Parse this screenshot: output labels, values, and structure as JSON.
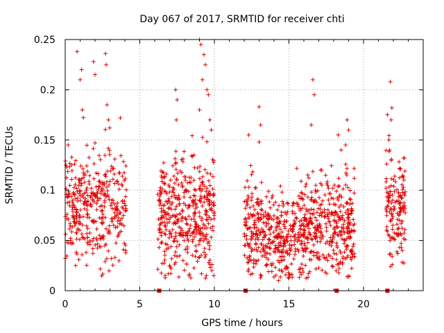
{
  "chart_data": {
    "type": "scatter",
    "title": "Day 067 of 2017, SRMTID for receiver chti",
    "xlabel": "GPS time / hours",
    "ylabel": "SRMTID / TECUs",
    "xlim": [
      0,
      24
    ],
    "ylim": [
      0,
      0.25
    ],
    "xticks": [
      0,
      5,
      10,
      15,
      20
    ],
    "yticks": [
      0,
      0.05,
      0.1,
      0.15,
      0.2,
      0.25
    ],
    "ytick_labels": [
      "0",
      "0.05",
      "0.1",
      "0.15",
      "0.2",
      "0.25"
    ],
    "grid": true,
    "series_color": "#e00000",
    "baseline_markers_hours": [
      6.3,
      12.1,
      18.2,
      21.6
    ],
    "clusters": [
      {
        "start": 0.0,
        "end": 4.1,
        "center": 0.085,
        "spread": 0.028,
        "n": 380,
        "outliers": [
          [
            0.2,
            0.145
          ],
          [
            0.8,
            0.238
          ],
          [
            1.1,
            0.22
          ],
          [
            1.15,
            0.18
          ],
          [
            1.9,
            0.228
          ],
          [
            2.0,
            0.215
          ],
          [
            2.7,
            0.236
          ],
          [
            2.75,
            0.225
          ],
          [
            2.8,
            0.185
          ],
          [
            2.9,
            0.17
          ],
          [
            1.0,
            0.21
          ],
          [
            3.7,
            0.172
          ],
          [
            0.7,
            0.025
          ],
          [
            3.1,
            0.032
          ]
        ]
      },
      {
        "start": 6.2,
        "end": 10.0,
        "center": 0.075,
        "spread": 0.03,
        "n": 420,
        "outliers": [
          [
            7.4,
            0.2
          ],
          [
            7.5,
            0.19
          ],
          [
            7.45,
            0.17
          ],
          [
            9.0,
            0.25
          ],
          [
            9.1,
            0.245
          ],
          [
            9.3,
            0.235
          ],
          [
            9.4,
            0.225
          ],
          [
            9.2,
            0.21
          ],
          [
            9.5,
            0.2
          ],
          [
            9.6,
            0.195
          ],
          [
            9.0,
            0.18
          ],
          [
            9.7,
            0.17
          ],
          [
            9.8,
            0.16
          ],
          [
            6.7,
            0.015
          ],
          [
            7.0,
            0.025
          ],
          [
            7.9,
            0.03
          ]
        ]
      },
      {
        "start": 12.0,
        "end": 19.4,
        "center": 0.062,
        "spread": 0.025,
        "n": 780,
        "outliers": [
          [
            12.3,
            0.155
          ],
          [
            13.0,
            0.183
          ],
          [
            13.1,
            0.165
          ],
          [
            13.0,
            0.148
          ],
          [
            14.3,
            0.01
          ],
          [
            16.6,
            0.21
          ],
          [
            16.7,
            0.195
          ],
          [
            16.5,
            0.165
          ],
          [
            17.2,
            0.12
          ],
          [
            18.3,
            0.155
          ],
          [
            18.5,
            0.14
          ],
          [
            18.9,
            0.17
          ],
          [
            19.0,
            0.16
          ],
          [
            18.8,
            0.145
          ],
          [
            17.6,
            0.03
          ]
        ]
      },
      {
        "start": 21.5,
        "end": 22.8,
        "center": 0.09,
        "spread": 0.025,
        "n": 150,
        "outliers": [
          [
            21.8,
            0.208
          ],
          [
            21.9,
            0.182
          ],
          [
            21.85,
            0.17
          ],
          [
            21.7,
            0.15
          ],
          [
            21.75,
            0.14
          ],
          [
            22.6,
            0.04
          ]
        ]
      }
    ]
  }
}
